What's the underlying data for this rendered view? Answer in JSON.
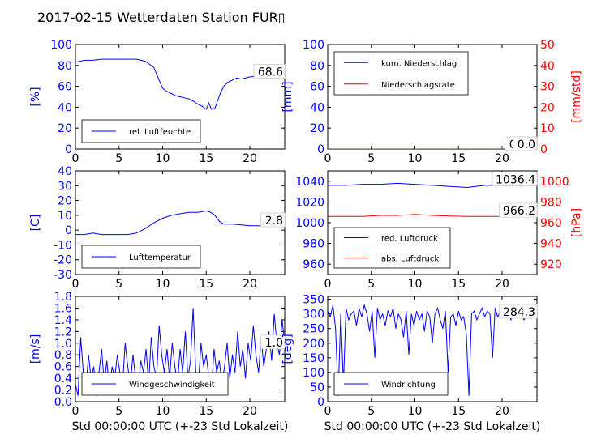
{
  "title": "2017-02-15 Wetterdaten Station FUR▯",
  "colors": {
    "blue": "#0000ff",
    "red": "#ff0000",
    "axis": "#000000"
  },
  "chart_data": [
    {
      "id": "humidity",
      "type": "line",
      "ylabel": "[%]",
      "ylim": [
        0,
        100
      ],
      "yticks": [
        0,
        20,
        40,
        60,
        80,
        100
      ],
      "xlim": [
        0,
        24
      ],
      "xticks": [
        0,
        5,
        10,
        15,
        20
      ],
      "grid": false,
      "legend": "lower-left",
      "last_value_label": "68.6",
      "series": [
        {
          "name": "rel. Luftfeuchte",
          "color": "#0000ff",
          "x": [
            0,
            1,
            2,
            3,
            4,
            5,
            6,
            7,
            8,
            9,
            9.5,
            10,
            10.5,
            11,
            11.5,
            12,
            12.5,
            13,
            13.5,
            14,
            14.5,
            15,
            15.3,
            15.6,
            16,
            16.3,
            16.6,
            17,
            17.5,
            18,
            18.5,
            19,
            20,
            21,
            22,
            23,
            23.5,
            24
          ],
          "y": [
            83,
            85,
            85,
            86,
            86,
            86,
            86,
            86,
            84,
            78,
            68,
            58,
            55,
            53,
            51,
            50,
            49,
            48,
            46,
            43,
            41,
            38,
            44,
            38,
            39,
            46,
            53,
            60,
            64,
            66,
            68,
            67,
            69,
            70,
            70,
            70,
            69,
            68.6
          ]
        }
      ]
    },
    {
      "id": "precip",
      "type": "line",
      "ylabel": "[mm]",
      "ylabel_right": "[mm/std]",
      "ylim": [
        0,
        100
      ],
      "yticks": [
        0,
        20,
        40,
        60,
        80,
        100
      ],
      "ylim_right": [
        0,
        50
      ],
      "yticks_right": [
        0,
        10,
        20,
        30,
        40,
        50
      ],
      "xlim": [
        0,
        24
      ],
      "xticks": [
        0,
        5,
        10,
        15,
        20
      ],
      "grid": false,
      "legend": "upper-left",
      "last_value_label": "0.0",
      "last_value_label_right": "0.0",
      "series": [
        {
          "name": "kum. Niederschlag",
          "color": "#0000ff",
          "axis": "left",
          "x": [
            0,
            24
          ],
          "y": [
            0,
            0
          ]
        },
        {
          "name": "Niederschlagsrate",
          "color": "#ff0000",
          "axis": "right",
          "x": [
            0,
            24
          ],
          "y": [
            0,
            0
          ]
        }
      ]
    },
    {
      "id": "temperature",
      "type": "line",
      "ylabel": "[C]",
      "ylim": [
        -30,
        40
      ],
      "yticks": [
        -30,
        -20,
        -10,
        0,
        10,
        20,
        30,
        40
      ],
      "xlim": [
        0,
        24
      ],
      "xticks": [
        0,
        5,
        10,
        15,
        20
      ],
      "grid": false,
      "legend": "lower-left",
      "last_value_label": "2.8",
      "series": [
        {
          "name": "Lufttemperatur",
          "color": "#0000ff",
          "x": [
            0,
            1,
            2,
            3,
            4,
            5,
            6,
            7,
            8,
            9,
            10,
            11,
            12,
            13,
            14,
            15,
            15.5,
            16,
            16.5,
            17,
            18,
            19,
            20,
            21,
            22,
            23,
            24
          ],
          "y": [
            -3,
            -3,
            -2,
            -3,
            -3,
            -3,
            -3,
            -2,
            1,
            5,
            8,
            10,
            11,
            12,
            12,
            13,
            12,
            10,
            6,
            4,
            4,
            3.5,
            3,
            3,
            3,
            2.8,
            2.8
          ]
        }
      ]
    },
    {
      "id": "pressure",
      "type": "line",
      "ylabel_right": "[hPa]",
      "ylim": [
        950,
        1050
      ],
      "yticks": [
        960,
        980,
        1000,
        1020,
        1040
      ],
      "ylim_right": [
        910,
        1010
      ],
      "yticks_right": [
        920,
        940,
        960,
        980,
        1000
      ],
      "xlim": [
        0,
        24
      ],
      "xticks": [
        0,
        5,
        10,
        15,
        20
      ],
      "grid": false,
      "legend": "lower-left",
      "last_value_label": "1036.4",
      "last_value_label_right": "966.2",
      "series": [
        {
          "name": "red. Luftdruck",
          "color": "#0000ff",
          "axis": "left",
          "x": [
            0,
            2,
            4,
            6,
            8,
            10,
            12,
            14,
            16,
            18,
            20,
            22,
            24
          ],
          "y": [
            1036,
            1036,
            1037,
            1037,
            1038,
            1037,
            1036,
            1035,
            1034,
            1036,
            1036,
            1036.5,
            1036.4
          ]
        },
        {
          "name": "abs. Luftdruck",
          "color": "#ff0000",
          "axis": "right",
          "x": [
            0,
            2,
            4,
            6,
            8,
            10,
            12,
            14,
            16,
            18,
            20,
            22,
            24
          ],
          "y": [
            966,
            966,
            966,
            967,
            967,
            968,
            967,
            966.5,
            966,
            966,
            966,
            966.2,
            966.2
          ]
        }
      ]
    },
    {
      "id": "wind_speed",
      "type": "line",
      "ylabel": "[m/s]",
      "ylim": [
        0,
        1.8
      ],
      "yticks": [
        0.0,
        0.2,
        0.4,
        0.6,
        0.8,
        1.0,
        1.2,
        1.4,
        1.6,
        1.8
      ],
      "xlim": [
        0,
        24
      ],
      "xticks": [
        0,
        5,
        10,
        15,
        20
      ],
      "xlabel": "Std 00:00:00 UTC (+-23 Std Lokalzeit)",
      "grid": false,
      "legend": "lower-center",
      "last_value_label": "1.0",
      "series": [
        {
          "name": "Windgeschwindigkeit",
          "color": "#0000ff",
          "x": [
            0,
            0.3,
            0.6,
            0.9,
            1.2,
            1.5,
            1.8,
            2.1,
            2.4,
            2.7,
            3,
            3.3,
            3.6,
            3.9,
            4.2,
            4.5,
            4.8,
            5.1,
            5.4,
            5.7,
            6,
            6.3,
            6.6,
            6.9,
            7.2,
            7.5,
            7.8,
            8.1,
            8.4,
            8.7,
            9,
            9.3,
            9.6,
            9.9,
            10.2,
            10.5,
            10.8,
            11.1,
            11.4,
            11.7,
            12,
            12.3,
            12.6,
            12.9,
            13.2,
            13.5,
            13.8,
            14.1,
            14.4,
            14.7,
            15,
            15.3,
            15.6,
            15.9,
            16.2,
            16.5,
            16.8,
            17.1,
            17.4,
            17.7,
            18,
            18.3,
            18.6,
            18.9,
            19.2,
            19.5,
            19.8,
            20.1,
            20.4,
            20.7,
            21,
            21.3,
            21.6,
            21.9,
            22.2,
            22.5,
            22.8,
            23.1,
            23.4,
            23.7,
            24
          ],
          "y": [
            0.3,
            0.1,
            1.1,
            0.5,
            0.2,
            0.8,
            0.4,
            0.6,
            0.1,
            0.5,
            0.9,
            0.3,
            0.7,
            0.2,
            0.6,
            0.4,
            0.8,
            0.5,
            0.3,
            1.0,
            0.6,
            0.3,
            0.8,
            0.4,
            0.2,
            0.7,
            0.5,
            0.9,
            0.3,
            1.1,
            0.6,
            0.4,
            1.3,
            0.8,
            0.5,
            0.9,
            0.4,
            1.0,
            0.6,
            0.3,
            0.9,
            0.5,
            1.2,
            0.4,
            0.7,
            1.6,
            0.5,
            0.3,
            1.0,
            0.6,
            0.8,
            0.4,
            0.2,
            0.9,
            0.5,
            0.7,
            0.3,
            0.6,
            1.0,
            0.4,
            0.8,
            0.5,
            1.2,
            0.6,
            0.9,
            0.4,
            1.0,
            0.7,
            1.3,
            0.8,
            0.5,
            1.1,
            0.6,
            0.9,
            1.2,
            0.7,
            1.5,
            1.0,
            0.8,
            1.4,
            1.0
          ]
        }
      ]
    },
    {
      "id": "wind_dir",
      "type": "line",
      "ylabel": "[deg]",
      "ylim": [
        0,
        360
      ],
      "yticks": [
        0,
        50,
        100,
        150,
        200,
        250,
        300,
        350
      ],
      "xlim": [
        0,
        24
      ],
      "xticks": [
        0,
        5,
        10,
        15,
        20
      ],
      "xlabel": "Std 00:00:00 UTC (+-23 Std Lokalzeit)",
      "grid": false,
      "legend": "lower-left",
      "last_value_label": "284.3",
      "series": [
        {
          "name": "Windrichtung",
          "color": "#0000ff",
          "x": [
            0,
            0.3,
            0.6,
            0.9,
            1.2,
            1.5,
            1.8,
            2.1,
            2.4,
            2.7,
            3,
            3.3,
            3.6,
            3.9,
            4.2,
            4.5,
            4.8,
            5.1,
            5.4,
            5.7,
            6,
            6.3,
            6.6,
            6.9,
            7.2,
            7.5,
            7.8,
            8.1,
            8.4,
            8.7,
            9,
            9.3,
            9.6,
            9.9,
            10.2,
            10.5,
            10.8,
            11.1,
            11.4,
            11.7,
            12,
            12.3,
            12.6,
            12.9,
            13.2,
            13.5,
            13.8,
            14.1,
            14.4,
            14.7,
            15,
            15.3,
            15.6,
            15.9,
            16.2,
            16.5,
            16.8,
            17.1,
            17.4,
            17.7,
            18,
            18.3,
            18.6,
            18.9,
            19.2,
            19.5,
            19.8,
            20.1,
            20.4,
            20.7,
            21,
            21.3,
            21.6,
            21.9,
            22.2,
            22.5,
            22.8,
            23.1,
            23.4,
            23.7,
            24
          ],
          "y": [
            310,
            290,
            330,
            250,
            20,
            300,
            60,
            320,
            280,
            300,
            310,
            260,
            320,
            290,
            330,
            300,
            240,
            310,
            150,
            320,
            280,
            300,
            260,
            310,
            290,
            320,
            250,
            300,
            280,
            220,
            310,
            160,
            300,
            260,
            310,
            280,
            300,
            240,
            310,
            290,
            200,
            300,
            320,
            280,
            250,
            310,
            100,
            290,
            300,
            260,
            310,
            280,
            290,
            230,
            20,
            300,
            310,
            280,
            300,
            320,
            290,
            310,
            300,
            150,
            320,
            290,
            310,
            300,
            290,
            310,
            280,
            300,
            290,
            310,
            300,
            280,
            290,
            300,
            285,
            290,
            284.3
          ]
        }
      ]
    }
  ]
}
